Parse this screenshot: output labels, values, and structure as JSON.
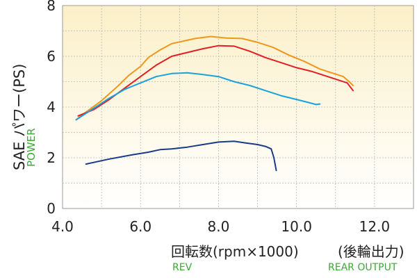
{
  "chart_data": {
    "type": "line",
    "xlim": [
      4.0,
      13.0
    ],
    "ylim": [
      0,
      8
    ],
    "x_ticks": [
      "4.0",
      "6.0",
      "8.0",
      "10.0",
      "12.0"
    ],
    "y_ticks": [
      "0",
      "2",
      "4",
      "6",
      "8"
    ],
    "x_tick_values": [
      4,
      6,
      8,
      10,
      12
    ],
    "y_tick_values": [
      0,
      2,
      4,
      6,
      8
    ],
    "ylabel": "SAE パワー(PS)",
    "ylabel_en": "POWER",
    "xlabel": "回転数(rpm×1000)",
    "xlabel_en": "REV",
    "xlabel_right": "(後輪出力)",
    "xlabel_right_en": "REAR OUTPUT",
    "grid": true,
    "series": [
      {
        "color": "#f0961e",
        "points": [
          [
            4.35,
            3.5
          ],
          [
            4.6,
            3.8
          ],
          [
            5.0,
            4.25
          ],
          [
            5.4,
            4.8
          ],
          [
            5.7,
            5.25
          ],
          [
            6.0,
            5.6
          ],
          [
            6.2,
            5.95
          ],
          [
            6.5,
            6.25
          ],
          [
            6.8,
            6.5
          ],
          [
            7.1,
            6.6
          ],
          [
            7.4,
            6.7
          ],
          [
            7.8,
            6.78
          ],
          [
            8.2,
            6.72
          ],
          [
            8.6,
            6.7
          ],
          [
            9.0,
            6.55
          ],
          [
            9.4,
            6.35
          ],
          [
            9.8,
            6.05
          ],
          [
            10.2,
            5.8
          ],
          [
            10.6,
            5.5
          ],
          [
            11.0,
            5.3
          ],
          [
            11.2,
            5.2
          ],
          [
            11.35,
            5.0
          ],
          [
            11.45,
            4.85
          ]
        ]
      },
      {
        "color": "#e31e24",
        "points": [
          [
            4.4,
            3.65
          ],
          [
            4.8,
            3.9
          ],
          [
            5.2,
            4.3
          ],
          [
            5.6,
            4.75
          ],
          [
            6.0,
            5.2
          ],
          [
            6.4,
            5.65
          ],
          [
            6.8,
            6.0
          ],
          [
            7.2,
            6.15
          ],
          [
            7.6,
            6.3
          ],
          [
            8.0,
            6.42
          ],
          [
            8.4,
            6.4
          ],
          [
            8.8,
            6.2
          ],
          [
            9.2,
            5.95
          ],
          [
            9.6,
            5.75
          ],
          [
            10.0,
            5.55
          ],
          [
            10.4,
            5.4
          ],
          [
            10.8,
            5.2
          ],
          [
            11.1,
            5.05
          ],
          [
            11.3,
            4.95
          ],
          [
            11.45,
            4.65
          ]
        ]
      },
      {
        "color": "#1aa1db",
        "points": [
          [
            4.35,
            3.5
          ],
          [
            4.8,
            3.95
          ],
          [
            5.2,
            4.35
          ],
          [
            5.6,
            4.7
          ],
          [
            6.0,
            4.95
          ],
          [
            6.4,
            5.2
          ],
          [
            6.8,
            5.32
          ],
          [
            7.2,
            5.35
          ],
          [
            7.6,
            5.28
          ],
          [
            8.0,
            5.2
          ],
          [
            8.4,
            5.0
          ],
          [
            8.8,
            4.85
          ],
          [
            9.2,
            4.65
          ],
          [
            9.6,
            4.45
          ],
          [
            10.0,
            4.3
          ],
          [
            10.3,
            4.18
          ],
          [
            10.5,
            4.1
          ],
          [
            10.6,
            4.12
          ]
        ]
      },
      {
        "color": "#1a3a8a",
        "points": [
          [
            4.6,
            1.75
          ],
          [
            5.2,
            1.95
          ],
          [
            5.8,
            2.12
          ],
          [
            6.2,
            2.22
          ],
          [
            6.5,
            2.32
          ],
          [
            6.8,
            2.35
          ],
          [
            7.2,
            2.42
          ],
          [
            7.6,
            2.52
          ],
          [
            8.0,
            2.62
          ],
          [
            8.4,
            2.65
          ],
          [
            8.7,
            2.58
          ],
          [
            9.0,
            2.52
          ],
          [
            9.2,
            2.45
          ],
          [
            9.35,
            2.35
          ],
          [
            9.42,
            2.0
          ],
          [
            9.48,
            1.5
          ]
        ]
      }
    ]
  }
}
